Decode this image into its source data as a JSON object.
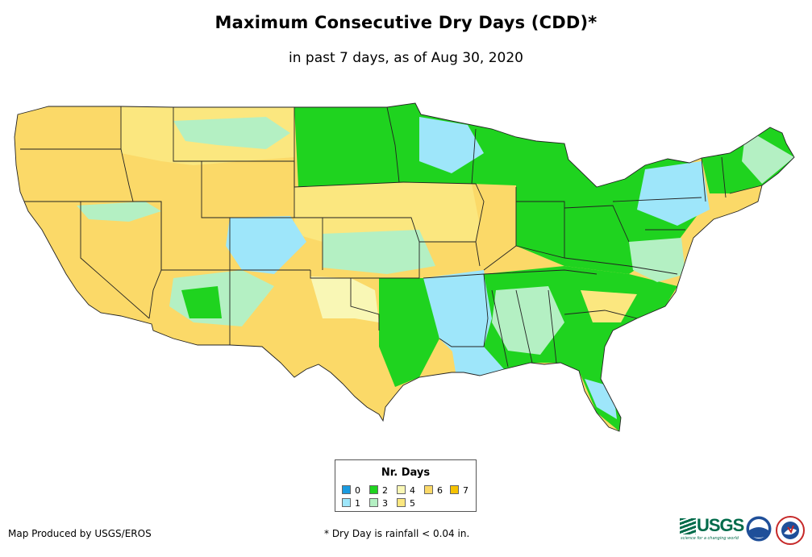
{
  "title": "Maximum Consecutive Dry Days (CDD)*",
  "subtitle": "in past 7 days, as of Aug 30, 2020",
  "legend": {
    "title": "Nr. Days",
    "items": [
      {
        "label": "0",
        "color": "#1a9be0"
      },
      {
        "label": "1",
        "color": "#9ee6fa"
      },
      {
        "label": "2",
        "color": "#1fd31f"
      },
      {
        "label": "3",
        "color": "#b4f0c3"
      },
      {
        "label": "4",
        "color": "#f9f7b5"
      },
      {
        "label": "5",
        "color": "#fbe77f"
      },
      {
        "label": "6",
        "color": "#fbd968"
      },
      {
        "label": "7",
        "color": "#f5c200"
      }
    ]
  },
  "footer": {
    "credit": "Map Produced by USGS/EROS",
    "note": "* Dry Day is rainfall < 0.04 in."
  },
  "logos": {
    "usgs": "USGS",
    "usgs_tagline": "science for a changing world",
    "noaa": "noaa"
  },
  "icons": [
    "usgs-logo-icon",
    "noaa-logo-icon",
    "nws-logo-icon"
  ]
}
